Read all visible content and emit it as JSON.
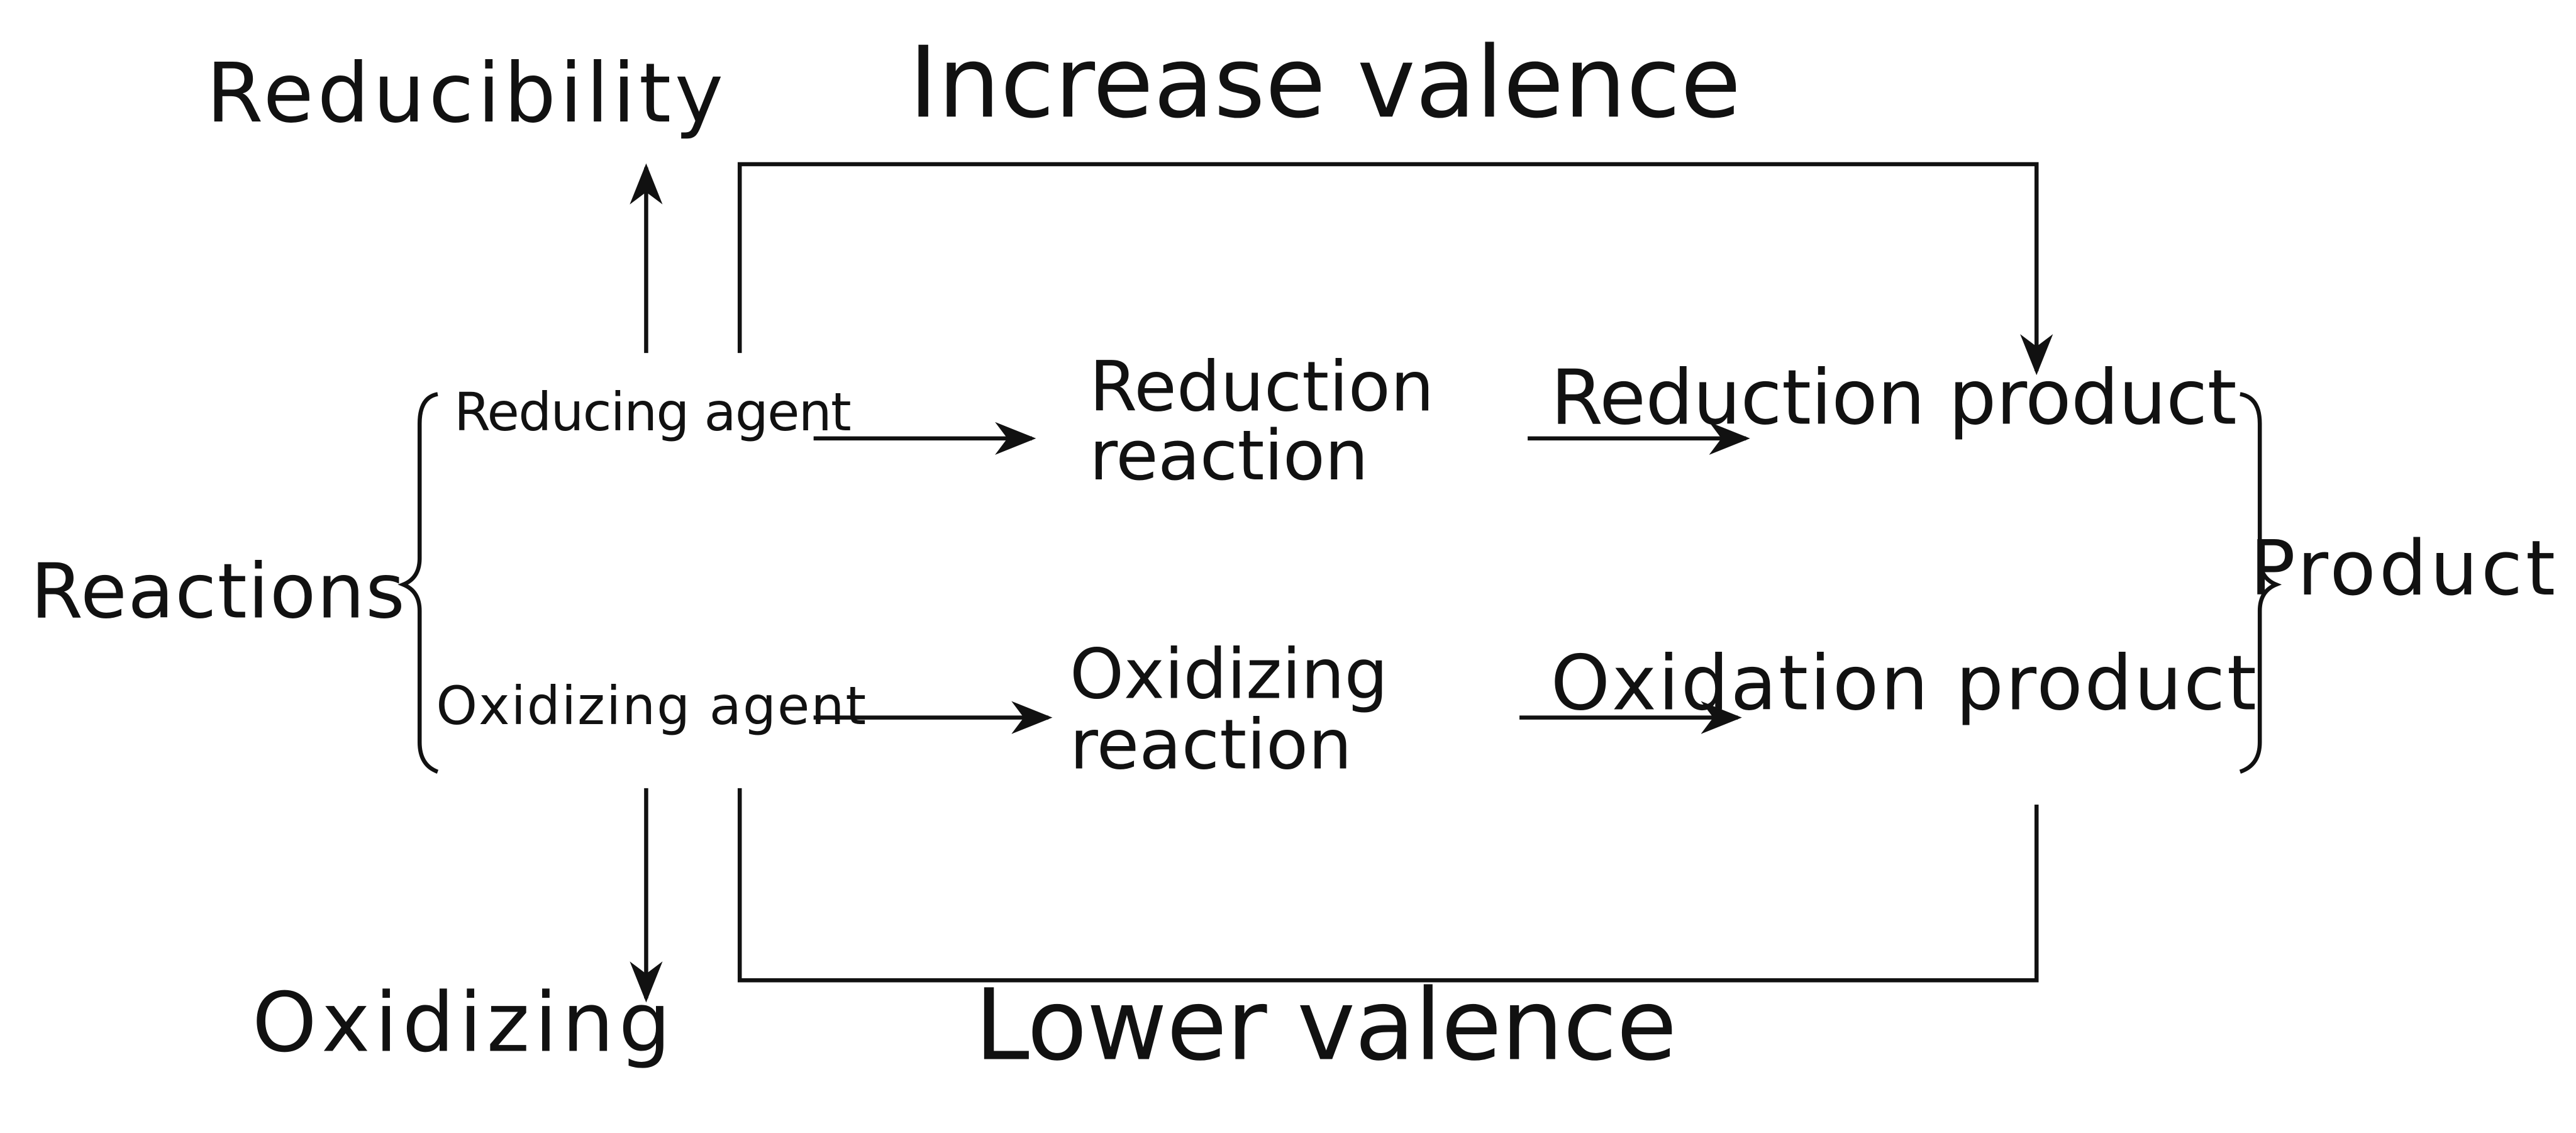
{
  "labels": {
    "reducibility": "Reducibility",
    "increase_valence": "Increase valence",
    "reactions": "Reactions",
    "reducing_agent": "Reducing agent",
    "oxidizing_agent": "Oxidizing agent",
    "reduction_reaction_line1": "Reduction",
    "reduction_reaction_line2": "reaction",
    "oxidizing_reaction_line1": "Oxidizing",
    "oxidizing_reaction_line2": "reaction",
    "reduction_product": "Reduction product",
    "oxidation_product": "Oxidation product",
    "product": "Product",
    "oxidizing": "Oxidizing",
    "lower_valence": "Lower valence"
  },
  "colors": {
    "ink": "#111111",
    "background": "#ffffff"
  }
}
